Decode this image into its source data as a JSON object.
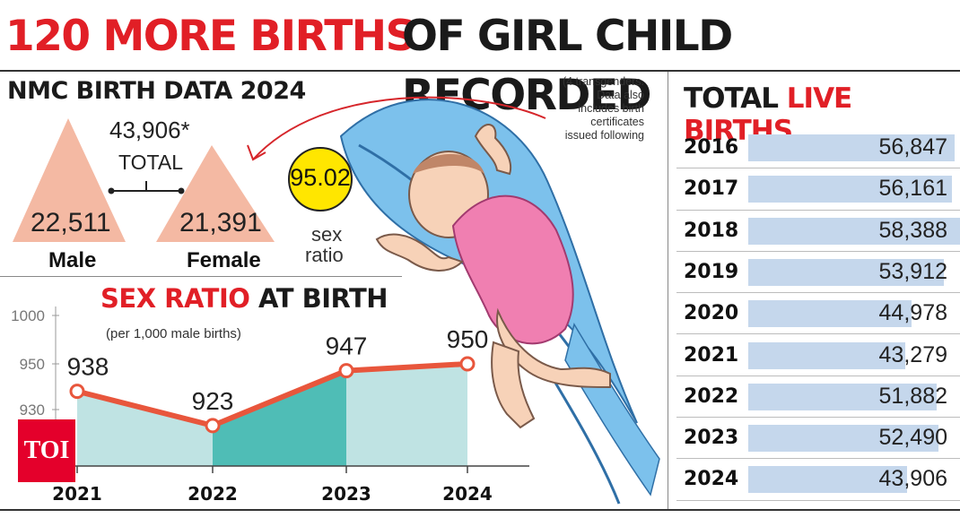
{
  "headline": {
    "red": "120 MORE BIRTHS",
    "black": "OF GIRL CHILD RECORDED"
  },
  "nmc": {
    "title": "NMC BIRTH DATA 2024",
    "total_value": "43,906*",
    "total_label": "TOTAL",
    "male_value": "22,511",
    "male_label": "Male",
    "female_value": "21,391",
    "female_label": "Female",
    "sex_ratio_value": "95.02",
    "sex_ratio_label_1": "sex",
    "sex_ratio_label_2": "ratio",
    "note_lines": [
      "(4 transgenders.",
      "Data also",
      "includes birth",
      "certificates",
      "issued following"
    ]
  },
  "colors": {
    "accent_red": "#e11f26",
    "triangle": "#f4b9a3",
    "ratio_circle": "#ffe600",
    "line": "#e8563c",
    "area_light": "#bfe3e3",
    "area_dark": "#4fbdb6",
    "bar": "#c5d7ec"
  },
  "brand": {
    "logo_text": "TOI"
  },
  "chart_data": [
    {
      "type": "line",
      "title_red": "SEX RATIO",
      "title_black": "AT BIRTH",
      "subtitle": "(per 1,000 male births)",
      "categories": [
        "2021",
        "2022",
        "2023",
        "2024"
      ],
      "values": [
        938,
        923,
        947,
        950
      ],
      "value_labels": [
        "938",
        "923",
        "947",
        "950"
      ],
      "y_ticks": [
        {
          "value": 1000,
          "label": "1000"
        },
        {
          "value": 950,
          "label": "950"
        },
        {
          "value": 930,
          "label": "930"
        }
      ]
    },
    {
      "type": "bar",
      "title_black": "TOTAL",
      "title_red": "LIVE BIRTHS",
      "categories": [
        "2016",
        "2017",
        "2018",
        "2019",
        "2020",
        "2021",
        "2022",
        "2023",
        "2024"
      ],
      "values": [
        56847,
        56161,
        58388,
        53912,
        44978,
        43279,
        51882,
        52490,
        43906
      ],
      "value_labels": [
        "56,847",
        "56,161",
        "58,388",
        "53,912",
        "44,978",
        "43,279",
        "51,882",
        "52,490",
        "43,906"
      ],
      "xlim": [
        0,
        58388
      ]
    }
  ]
}
